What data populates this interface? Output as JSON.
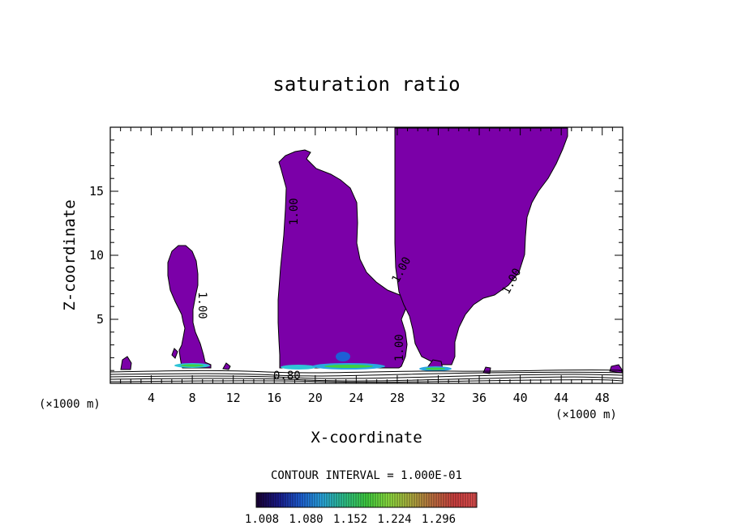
{
  "chart_data": {
    "type": "contour",
    "title": "saturation ratio",
    "xlabel": "X-coordinate",
    "ylabel": "Z-coordinate",
    "x_unit": "(×1000 m)",
    "xlim": [
      0,
      50
    ],
    "ylim": [
      0,
      20
    ],
    "x_ticks": [
      4,
      8,
      12,
      16,
      20,
      24,
      28,
      32,
      36,
      40,
      44,
      48
    ],
    "y_ticks": [
      5,
      10,
      15
    ],
    "contour_interval_text": "CONTOUR INTERVAL = 1.000E-01",
    "contour_labels": [
      "1.00",
      "1.00",
      "1.00",
      "1.00",
      "1.00",
      "0.80"
    ],
    "colorbar": {
      "tick_labels": [
        "1.008",
        "1.080",
        "1.152",
        "1.224",
        "1.296"
      ],
      "colors": [
        "#1a0033",
        "#1a1a8c",
        "#1e5fd6",
        "#2aa8e0",
        "#2ec48a",
        "#40d040",
        "#8ee040",
        "#b0b040",
        "#c07040",
        "#d04040",
        "#e05050"
      ]
    },
    "fill_color": "#7b00a8",
    "regions": [
      {
        "name": "left-plume",
        "x_range": [
          6,
          10
        ],
        "z_top": 10.7
      },
      {
        "name": "middle-plume",
        "x_range": [
          16.5,
          29
        ],
        "z_top": 18.5
      },
      {
        "name": "right-plume",
        "x_range": [
          27.5,
          44.5
        ],
        "z_top": 20
      }
    ]
  }
}
